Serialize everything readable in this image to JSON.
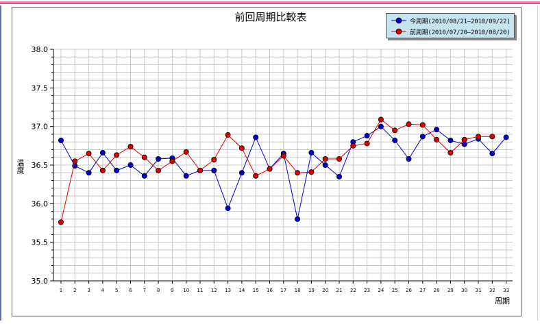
{
  "chart_data": {
    "type": "line",
    "title": "前回周期比較表",
    "xlabel": "周期",
    "ylabel": "温度",
    "ylim": [
      35.0,
      38.0
    ],
    "yticks": [
      "35.0",
      "35.5",
      "36.0",
      "36.5",
      "37.0",
      "37.5",
      "38.0"
    ],
    "categories": [
      "1",
      "2",
      "3",
      "4",
      "5",
      "6",
      "7",
      "8",
      "9",
      "10",
      "11",
      "12",
      "13",
      "14",
      "15",
      "16",
      "17",
      "18",
      "19",
      "20",
      "21",
      "22",
      "23",
      "24",
      "25",
      "26",
      "27",
      "28",
      "29",
      "30",
      "31",
      "32",
      "33"
    ],
    "grid": true,
    "legend_position": "top-right",
    "series": [
      {
        "name": "今周期(2010/08/21—2010/09/22)",
        "color": "#0000cc",
        "values": [
          36.82,
          36.49,
          36.4,
          36.66,
          36.43,
          36.5,
          36.36,
          36.58,
          36.59,
          36.36,
          36.43,
          36.43,
          35.94,
          36.4,
          36.86,
          36.45,
          36.65,
          35.8,
          36.66,
          36.5,
          36.35,
          36.8,
          36.88,
          37.0,
          36.82,
          36.58,
          36.87,
          36.96,
          36.82,
          36.77,
          36.84,
          36.65,
          36.86
        ]
      },
      {
        "name": "前周期(2010/07/20—2010/08/20)",
        "color": "#dd0000",
        "values": [
          35.76,
          36.55,
          36.65,
          36.43,
          36.63,
          36.74,
          36.6,
          36.43,
          36.55,
          36.67,
          36.43,
          36.57,
          36.89,
          36.72,
          36.36,
          36.45,
          36.62,
          36.4,
          36.41,
          36.58,
          36.58,
          36.75,
          36.78,
          37.09,
          36.95,
          37.03,
          37.02,
          36.83,
          36.66,
          36.83,
          36.87,
          36.87,
          null
        ]
      }
    ]
  }
}
